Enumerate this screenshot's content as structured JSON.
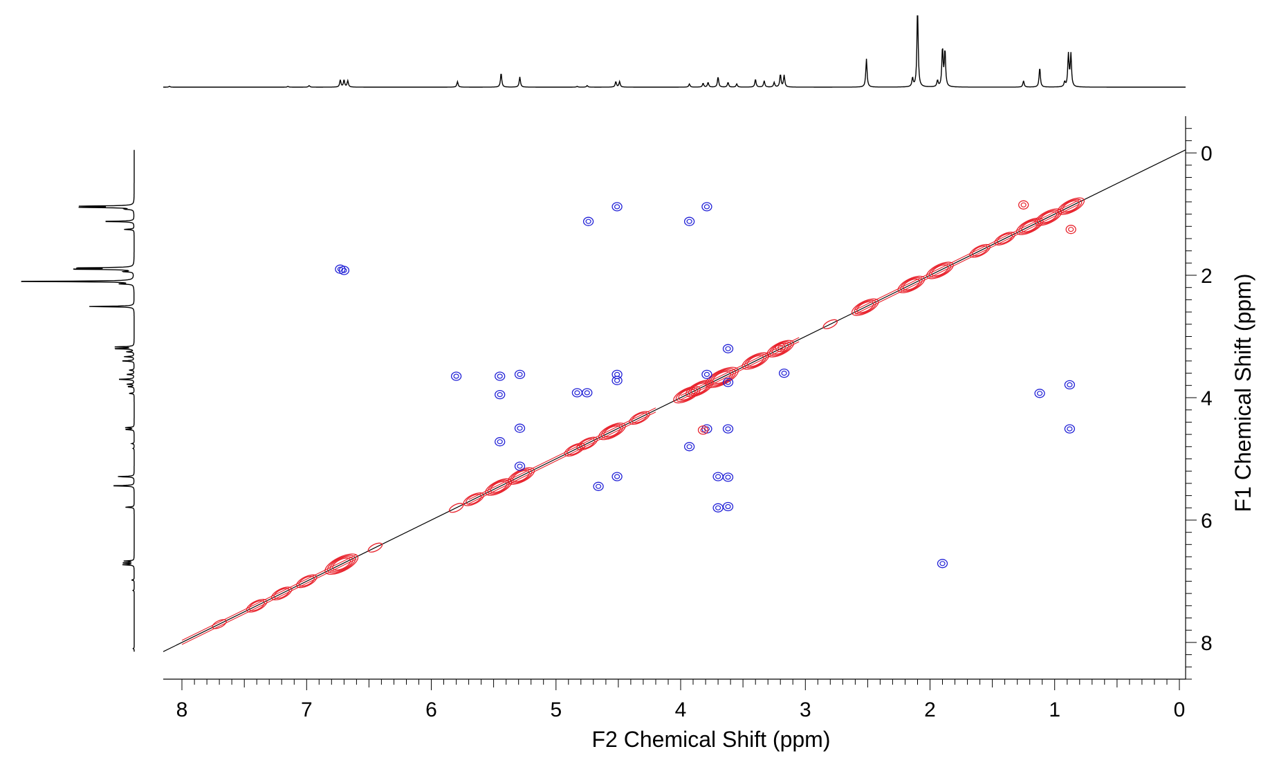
{
  "chart_data": {
    "type": "2d-nmr-contour",
    "xlabel": "F2 Chemical Shift (ppm)",
    "ylabel": "F1 Chemical Shift (ppm)",
    "xlim": [
      8.15,
      -0.05
    ],
    "ylim": [
      -0.6,
      8.6
    ],
    "x_ticks": [
      "8",
      "7",
      "6",
      "5",
      "4",
      "3",
      "2",
      "1",
      "0"
    ],
    "y_ticks": [
      "0",
      "2",
      "4",
      "6",
      "8"
    ],
    "x_tick_values": [
      8,
      7,
      6,
      5,
      4,
      3,
      2,
      1,
      0
    ],
    "y_tick_values": [
      0,
      2,
      4,
      6,
      8
    ],
    "diagonal": {
      "from": [
        8.15,
        8.15
      ],
      "to": [
        -0.05,
        -0.05
      ],
      "color": "#000000"
    },
    "colors": {
      "positive": "#e8202a",
      "negative": "#1f1fd6",
      "spectrum": "#000000"
    },
    "projection_peaks": [
      {
        "ppm": 8.1,
        "height": 0.01
      },
      {
        "ppm": 7.15,
        "height": 0.01
      },
      {
        "ppm": 6.98,
        "height": 0.02
      },
      {
        "ppm": 6.73,
        "height": 0.09
      },
      {
        "ppm": 6.7,
        "height": 0.09
      },
      {
        "ppm": 6.67,
        "height": 0.08
      },
      {
        "ppm": 5.79,
        "height": 0.07
      },
      {
        "ppm": 5.44,
        "height": 0.18
      },
      {
        "ppm": 5.29,
        "height": 0.13
      },
      {
        "ppm": 4.83,
        "height": 0.01
      },
      {
        "ppm": 4.75,
        "height": 0.02
      },
      {
        "ppm": 4.52,
        "height": 0.07
      },
      {
        "ppm": 4.49,
        "height": 0.07
      },
      {
        "ppm": 3.93,
        "height": 0.04
      },
      {
        "ppm": 3.82,
        "height": 0.05
      },
      {
        "ppm": 3.78,
        "height": 0.06
      },
      {
        "ppm": 3.7,
        "height": 0.13
      },
      {
        "ppm": 3.62,
        "height": 0.06
      },
      {
        "ppm": 3.55,
        "height": 0.04
      },
      {
        "ppm": 3.4,
        "height": 0.1
      },
      {
        "ppm": 3.33,
        "height": 0.08
      },
      {
        "ppm": 3.25,
        "height": 0.06
      },
      {
        "ppm": 3.2,
        "height": 0.16
      },
      {
        "ppm": 3.17,
        "height": 0.15
      },
      {
        "ppm": 2.51,
        "height": 0.36
      },
      {
        "ppm": 2.14,
        "height": 0.11
      },
      {
        "ppm": 2.1,
        "height": 1.0
      },
      {
        "ppm": 1.94,
        "height": 0.08
      },
      {
        "ppm": 1.9,
        "height": 0.49
      },
      {
        "ppm": 1.88,
        "height": 0.46
      },
      {
        "ppm": 1.25,
        "height": 0.08
      },
      {
        "ppm": 1.12,
        "height": 0.25
      },
      {
        "ppm": 0.92,
        "height": 0.06
      },
      {
        "ppm": 0.89,
        "height": 0.41
      },
      {
        "ppm": 0.87,
        "height": 0.41
      }
    ],
    "diagonal_peaks": [
      {
        "ppm": 7.7,
        "size": 1
      },
      {
        "ppm": 7.4,
        "size": 2
      },
      {
        "ppm": 7.2,
        "size": 2
      },
      {
        "ppm": 7.0,
        "size": 2
      },
      {
        "ppm": 6.72,
        "size": 4
      },
      {
        "ppm": 6.45,
        "size": 1
      },
      {
        "ppm": 5.8,
        "size": 1
      },
      {
        "ppm": 5.66,
        "size": 2
      },
      {
        "ppm": 5.46,
        "size": 3
      },
      {
        "ppm": 5.28,
        "size": 3
      },
      {
        "ppm": 4.85,
        "size": 2
      },
      {
        "ppm": 4.75,
        "size": 2
      },
      {
        "ppm": 4.55,
        "size": 3
      },
      {
        "ppm": 4.33,
        "size": 2
      },
      {
        "ppm": 3.95,
        "size": 3
      },
      {
        "ppm": 3.85,
        "size": 3
      },
      {
        "ppm": 3.67,
        "size": 4
      },
      {
        "ppm": 3.4,
        "size": 3
      },
      {
        "ppm": 3.2,
        "size": 3
      },
      {
        "ppm": 2.8,
        "size": 1
      },
      {
        "ppm": 2.52,
        "size": 3
      },
      {
        "ppm": 2.15,
        "size": 3
      },
      {
        "ppm": 1.92,
        "size": 3
      },
      {
        "ppm": 1.6,
        "size": 2
      },
      {
        "ppm": 1.4,
        "size": 2
      },
      {
        "ppm": 1.2,
        "size": 3
      },
      {
        "ppm": 1.05,
        "size": 3
      },
      {
        "ppm": 0.87,
        "size": 3
      }
    ],
    "cross_peaks": [
      {
        "f2": 4.51,
        "f1": 0.88,
        "sign": "negative"
      },
      {
        "f2": 3.79,
        "f1": 0.88,
        "sign": "negative"
      },
      {
        "f2": 3.93,
        "f1": 1.12,
        "sign": "negative"
      },
      {
        "f2": 4.74,
        "f1": 1.12,
        "sign": "negative"
      },
      {
        "f2": 6.73,
        "f1": 1.9,
        "sign": "negative"
      },
      {
        "f2": 6.7,
        "f1": 1.92,
        "sign": "negative"
      },
      {
        "f2": 1.25,
        "f1": 0.85,
        "sign": "positive"
      },
      {
        "f2": 0.87,
        "f1": 1.25,
        "sign": "positive"
      },
      {
        "f2": 3.62,
        "f1": 3.2,
        "sign": "negative"
      },
      {
        "f2": 3.17,
        "f1": 3.6,
        "sign": "negative"
      },
      {
        "f2": 5.8,
        "f1": 3.65,
        "sign": "negative"
      },
      {
        "f2": 5.45,
        "f1": 3.65,
        "sign": "negative"
      },
      {
        "f2": 5.29,
        "f1": 3.62,
        "sign": "negative"
      },
      {
        "f2": 4.51,
        "f1": 3.62,
        "sign": "negative"
      },
      {
        "f2": 4.51,
        "f1": 3.72,
        "sign": "negative"
      },
      {
        "f2": 4.83,
        "f1": 3.92,
        "sign": "negative"
      },
      {
        "f2": 4.75,
        "f1": 3.92,
        "sign": "negative"
      },
      {
        "f2": 5.45,
        "f1": 3.95,
        "sign": "negative"
      },
      {
        "f2": 3.79,
        "f1": 3.62,
        "sign": "negative"
      },
      {
        "f2": 3.62,
        "f1": 3.75,
        "sign": "negative"
      },
      {
        "f2": 1.12,
        "f1": 3.93,
        "sign": "negative"
      },
      {
        "f2": 0.88,
        "f1": 3.79,
        "sign": "negative"
      },
      {
        "f2": 5.29,
        "f1": 4.5,
        "sign": "negative"
      },
      {
        "f2": 5.45,
        "f1": 4.72,
        "sign": "negative"
      },
      {
        "f2": 3.79,
        "f1": 4.51,
        "sign": "negative"
      },
      {
        "f2": 3.62,
        "f1": 4.51,
        "sign": "negative"
      },
      {
        "f2": 3.93,
        "f1": 4.8,
        "sign": "negative"
      },
      {
        "f2": 0.88,
        "f1": 4.51,
        "sign": "negative"
      },
      {
        "f2": 3.82,
        "f1": 4.53,
        "sign": "positive"
      },
      {
        "f2": 4.51,
        "f1": 5.29,
        "sign": "negative"
      },
      {
        "f2": 3.7,
        "f1": 5.29,
        "sign": "negative"
      },
      {
        "f2": 3.62,
        "f1": 5.3,
        "sign": "negative"
      },
      {
        "f2": 4.66,
        "f1": 5.45,
        "sign": "negative"
      },
      {
        "f2": 3.7,
        "f1": 5.8,
        "sign": "negative"
      },
      {
        "f2": 3.62,
        "f1": 5.78,
        "sign": "negative"
      },
      {
        "f2": 5.29,
        "f1": 5.12,
        "sign": "negative"
      },
      {
        "f2": 1.9,
        "f1": 6.71,
        "sign": "negative"
      },
      {
        "f2": 3.2,
        "f1": 3.18,
        "sign": "positive"
      }
    ]
  }
}
